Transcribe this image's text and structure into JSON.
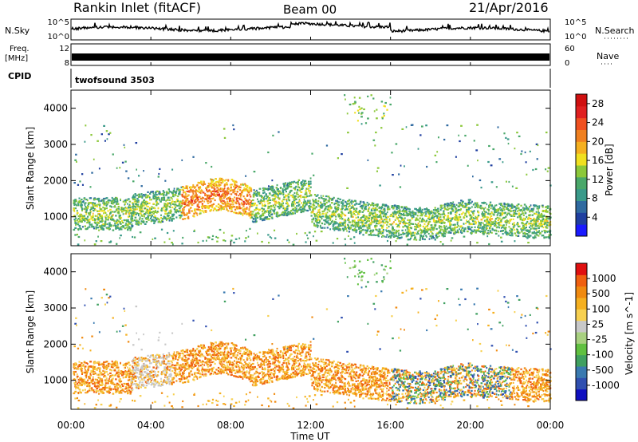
{
  "header": {
    "station": "Rankin Inlet (fitACF)",
    "beam": "Beam 00",
    "date": "21/Apr/2016"
  },
  "panels": {
    "nsky": {
      "label": "N.Sky",
      "right_label": "N.Search",
      "left_ticks": [
        "10^5",
        "10^0"
      ],
      "right_ticks": [
        "10^5",
        "10^0"
      ]
    },
    "freq": {
      "label_line1": "Freq.",
      "label_line2": "[MHz]",
      "right_label": "Nave",
      "left_ticks": [
        "12",
        "8"
      ],
      "right_ticks": [
        "60",
        "0"
      ]
    },
    "cpid": {
      "label": "CPID",
      "value": "twofsound 3503"
    }
  },
  "colors": {
    "power_scale": [
      "#1a1aff",
      "#1f3fa0",
      "#2f6aa0",
      "#3a9a8a",
      "#4aa86a",
      "#8cc83a",
      "#f0e020",
      "#f5b020",
      "#f08020",
      "#f05020",
      "#e02020",
      "#d01010"
    ],
    "velocity_scale": [
      "#e01010",
      "#f06010",
      "#f08a10",
      "#f5b020",
      "#f7d050",
      "#c8c8c8",
      "#a8d080",
      "#60c040",
      "#40a060",
      "#3a7ab0",
      "#3050b0",
      "#1010c0"
    ]
  },
  "chart_data": [
    {
      "type": "heatmap",
      "title": "",
      "xlabel": "Time UT",
      "ylabel": "Slant Range [km]",
      "x_ticks": [
        "00:00",
        "04:00",
        "08:00",
        "12:00",
        "16:00",
        "20:00",
        "00:00"
      ],
      "xlim": [
        0,
        24
      ],
      "y_ticks": [
        1000,
        2000,
        3000,
        4000
      ],
      "ylim": [
        200,
        4500
      ],
      "colorbar_label": "Power [dB]",
      "colorbar_ticks": [
        4,
        8,
        12,
        16,
        20,
        24,
        28
      ],
      "colorbar_range": [
        0,
        30
      ]
    },
    {
      "type": "heatmap",
      "title": "",
      "xlabel": "Time UT",
      "ylabel": "Slant Range [km]",
      "x_ticks": [
        "00:00",
        "04:00",
        "08:00",
        "12:00",
        "16:00",
        "20:00",
        "00:00"
      ],
      "xlim": [
        0,
        24
      ],
      "y_ticks": [
        1000,
        2000,
        3000,
        4000
      ],
      "ylim": [
        200,
        4500
      ],
      "colorbar_label": "Velocity [m s^-1]",
      "colorbar_ticks": [
        "1000",
        "500",
        "100",
        "25",
        "-25",
        "-100",
        "-500",
        "-1000"
      ]
    }
  ],
  "xaxis": {
    "ticks": [
      "00:00",
      "04:00",
      "08:00",
      "12:00",
      "16:00",
      "20:00",
      "00:00"
    ],
    "label": "Time UT"
  }
}
